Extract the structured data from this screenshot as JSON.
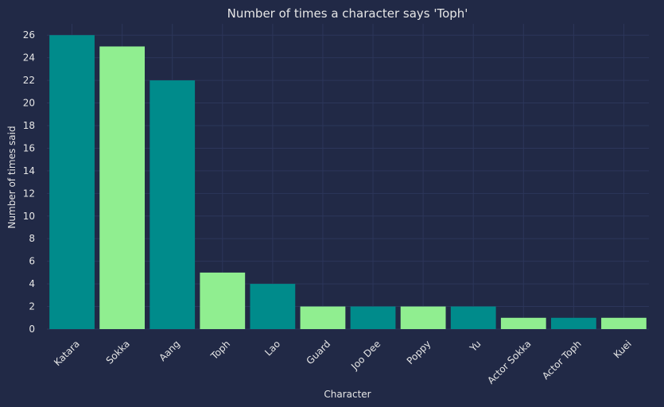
{
  "chart_data": {
    "type": "bar",
    "title": "Number of times a character says 'Toph'",
    "xlabel": "Character",
    "ylabel": "Number of times said",
    "categories": [
      "Katara",
      "Sokka",
      "Aang",
      "Toph",
      "Lao",
      "Guard",
      "Joo Dee",
      "Poppy",
      "Yu",
      "Actor Sokka",
      "Actor Toph",
      "Kuei"
    ],
    "values": [
      26,
      25,
      22,
      5,
      4,
      2,
      2,
      2,
      2,
      1,
      1,
      1
    ],
    "ylim": [
      0,
      27
    ],
    "yticks": [
      0,
      2,
      4,
      6,
      8,
      10,
      12,
      14,
      16,
      18,
      20,
      22,
      24,
      26
    ],
    "grid": true,
    "colors": [
      "#008b8b",
      "#90ee90"
    ],
    "background": "#212946"
  }
}
